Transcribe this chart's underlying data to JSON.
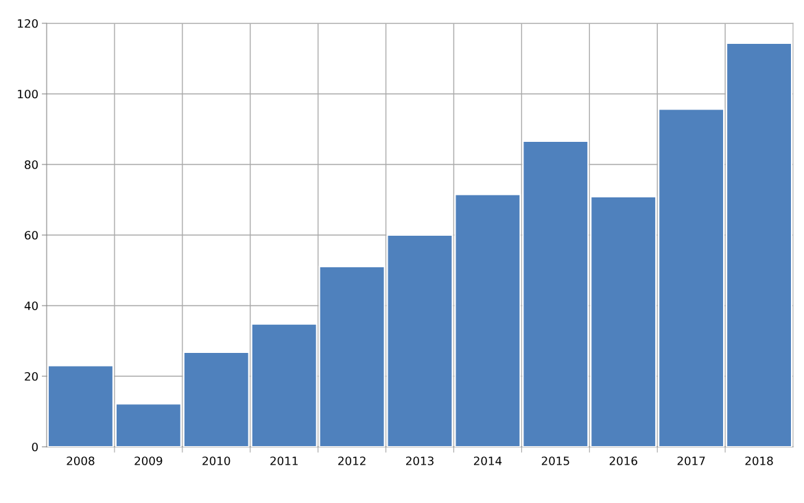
{
  "chart_data": {
    "type": "bar",
    "categories": [
      "2008",
      "2009",
      "2010",
      "2011",
      "2012",
      "2013",
      "2014",
      "2015",
      "2016",
      "2017",
      "2018"
    ],
    "values": [
      23,
      12.2,
      26.8,
      34.8,
      51.1,
      60,
      71.5,
      86.6,
      70.9,
      95.7,
      114.4
    ],
    "color": "#4f81bd",
    "ylim": [
      0,
      120
    ],
    "yticks": [
      0,
      20,
      40,
      60,
      80,
      100,
      120
    ],
    "grid": true
  }
}
